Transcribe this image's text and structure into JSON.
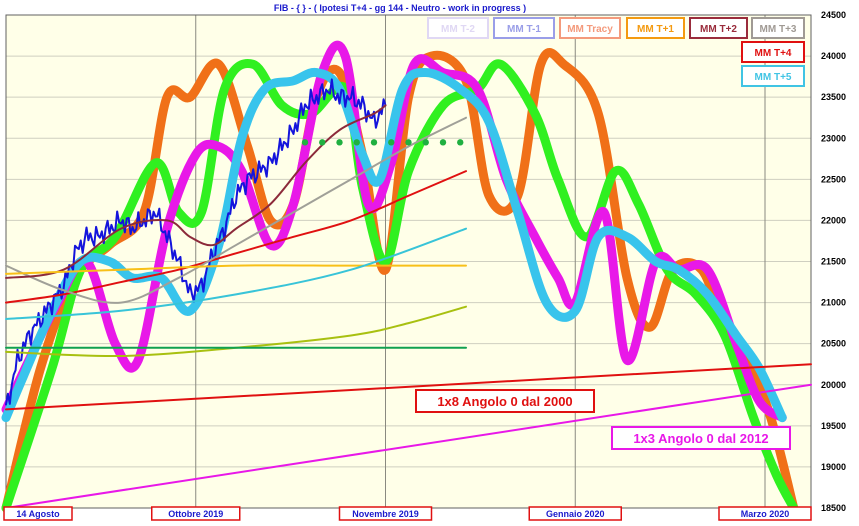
{
  "chart_data": {
    "type": "line",
    "title": "FIB  -  { } - ( Ipotesi T+4  - gg 144  - Neutro - work in progress )",
    "xlabel": "",
    "ylabel": "",
    "x_range": [
      0,
      140
    ],
    "ylim": [
      18500,
      24500
    ],
    "yticks": [
      18500,
      19000,
      19500,
      20000,
      20500,
      21000,
      21500,
      22000,
      22500,
      23000,
      23500,
      24000,
      24500
    ],
    "grid": true,
    "background": "#ffffe8",
    "xtick_labels": [
      {
        "label": "14  Agosto",
        "x": 0
      },
      {
        "label": "Ottobre 2019",
        "x": 33
      },
      {
        "label": "Novembre 2019",
        "x": 66
      },
      {
        "label": "Gennaio  2020",
        "x": 99
      },
      {
        "label": "Marzo  2020",
        "x": 132
      }
    ],
    "vertical_gridlines_x": [
      33,
      66,
      99,
      132
    ],
    "legend": [
      {
        "label": "MM  T-2",
        "color": "#e0d8f4"
      },
      {
        "label": "MM  T-1",
        "color": "#9a9ee8"
      },
      {
        "label": "MM Tracy",
        "color": "#f49a7c"
      },
      {
        "label": "MM  T+1",
        "color": "#f49a10"
      },
      {
        "label": "MM  T+2",
        "color": "#9a2c3c"
      },
      {
        "label": "MM  T+3",
        "color": "#a09a94"
      },
      {
        "label": "MM  T+4",
        "color": "#e01010"
      },
      {
        "label": "MM  T+5",
        "color": "#40c4e4"
      }
    ],
    "annotations": [
      {
        "label": "1x8 Angolo 0 dal 2000",
        "color": "#e01010"
      },
      {
        "label": "1x3 Angolo 0 dal 2012",
        "color": "#e818e8"
      }
    ],
    "series": [
      {
        "color": "#f07018",
        "width": 9,
        "points": [
          [
            0,
            18500
          ],
          [
            6,
            20200
          ],
          [
            12,
            21300
          ],
          [
            18,
            21700
          ],
          [
            24,
            22100
          ],
          [
            28,
            23500
          ],
          [
            32,
            23500
          ],
          [
            37,
            23900
          ],
          [
            42,
            22900
          ],
          [
            46,
            22000
          ],
          [
            50,
            22200
          ],
          [
            54,
            23500
          ],
          [
            58,
            23800
          ],
          [
            62,
            22800
          ],
          [
            66,
            21400
          ],
          [
            70,
            23500
          ],
          [
            74,
            24000
          ],
          [
            80,
            23700
          ],
          [
            84,
            22300
          ],
          [
            89,
            22300
          ],
          [
            93,
            23900
          ],
          [
            97,
            23900
          ],
          [
            103,
            23300
          ],
          [
            108,
            21300
          ],
          [
            112,
            20700
          ],
          [
            116,
            21400
          ],
          [
            121,
            21400
          ],
          [
            125,
            20700
          ],
          [
            129,
            20300
          ],
          [
            133,
            19600
          ],
          [
            137,
            18500
          ]
        ]
      },
      {
        "color": "#30f020",
        "width": 9,
        "points": [
          [
            0,
            18500
          ],
          [
            8,
            20200
          ],
          [
            13,
            21400
          ],
          [
            19,
            21800
          ],
          [
            26,
            22700
          ],
          [
            30,
            22100
          ],
          [
            34,
            22100
          ],
          [
            38,
            23600
          ],
          [
            43,
            23900
          ],
          [
            48,
            23400
          ],
          [
            53,
            23300
          ],
          [
            59,
            23600
          ],
          [
            62,
            22400
          ],
          [
            66,
            21500
          ],
          [
            70,
            22600
          ],
          [
            76,
            23400
          ],
          [
            82,
            23600
          ],
          [
            86,
            23900
          ],
          [
            92,
            23300
          ],
          [
            96,
            22500
          ],
          [
            101,
            21800
          ],
          [
            106,
            22600
          ],
          [
            110,
            22200
          ],
          [
            115,
            21400
          ],
          [
            120,
            21100
          ],
          [
            125,
            20600
          ],
          [
            130,
            19600
          ],
          [
            134,
            18900
          ],
          [
            137,
            18500
          ]
        ]
      },
      {
        "color": "#e818e8",
        "width": 9,
        "points": [
          [
            0,
            19700
          ],
          [
            4,
            20300
          ],
          [
            9,
            21000
          ],
          [
            14,
            21500
          ],
          [
            19,
            20500
          ],
          [
            23,
            20300
          ],
          [
            28,
            21900
          ],
          [
            33,
            22800
          ],
          [
            37,
            22900
          ],
          [
            41,
            22600
          ],
          [
            46,
            21700
          ],
          [
            50,
            22200
          ],
          [
            55,
            23800
          ],
          [
            59,
            24000
          ],
          [
            63,
            22200
          ],
          [
            67,
            22700
          ],
          [
            71,
            23900
          ],
          [
            76,
            23800
          ],
          [
            82,
            23600
          ],
          [
            87,
            22500
          ],
          [
            92,
            21800
          ],
          [
            96,
            21300
          ],
          [
            99,
            21000
          ],
          [
            104,
            22100
          ],
          [
            108,
            20300
          ],
          [
            113,
            21500
          ],
          [
            117,
            21400
          ],
          [
            122,
            21400
          ],
          [
            127,
            20500
          ],
          [
            131,
            19800
          ],
          [
            135,
            19600
          ]
        ]
      },
      {
        "color": "#38c4ec",
        "width": 9,
        "points": [
          [
            0,
            19600
          ],
          [
            3,
            20100
          ],
          [
            8,
            20900
          ],
          [
            13,
            21500
          ],
          [
            18,
            21500
          ],
          [
            22,
            21300
          ],
          [
            27,
            21300
          ],
          [
            32,
            20900
          ],
          [
            37,
            21700
          ],
          [
            41,
            23000
          ],
          [
            45,
            23600
          ],
          [
            50,
            23700
          ],
          [
            54,
            23800
          ],
          [
            58,
            23600
          ],
          [
            62,
            22800
          ],
          [
            65,
            22500
          ],
          [
            69,
            23600
          ],
          [
            73,
            23800
          ],
          [
            79,
            23600
          ],
          [
            84,
            23200
          ],
          [
            89,
            22100
          ],
          [
            94,
            21000
          ],
          [
            99,
            20900
          ],
          [
            103,
            21800
          ],
          [
            108,
            21800
          ],
          [
            113,
            21500
          ],
          [
            117,
            21400
          ],
          [
            122,
            21100
          ],
          [
            127,
            20600
          ],
          [
            131,
            20200
          ],
          [
            135,
            19600
          ]
        ]
      },
      {
        "color": "#1414dc",
        "width": 2,
        "points": [
          [
            0,
            19700
          ],
          [
            2,
            20300
          ],
          [
            4,
            20600
          ],
          [
            6,
            20800
          ],
          [
            8,
            21000
          ],
          [
            10,
            21200
          ],
          [
            12,
            21600
          ],
          [
            14,
            21800
          ],
          [
            16,
            21800
          ],
          [
            18,
            21900
          ],
          [
            20,
            22000
          ],
          [
            22,
            21900
          ],
          [
            24,
            22000
          ],
          [
            26,
            22100
          ],
          [
            28,
            21800
          ],
          [
            30,
            21500
          ],
          [
            32,
            21100
          ],
          [
            34,
            21200
          ],
          [
            36,
            21600
          ],
          [
            38,
            21900
          ],
          [
            40,
            22300
          ],
          [
            42,
            22500
          ],
          [
            44,
            22600
          ],
          [
            46,
            22700
          ],
          [
            48,
            22900
          ],
          [
            50,
            23100
          ],
          [
            52,
            23400
          ],
          [
            54,
            23500
          ],
          [
            56,
            23600
          ],
          [
            58,
            23500
          ],
          [
            60,
            23500
          ],
          [
            62,
            23400
          ],
          [
            64,
            23200
          ],
          [
            66,
            23400
          ]
        ]
      },
      {
        "color": "#e01010",
        "width": 2,
        "points": [
          [
            0,
            21000
          ],
          [
            10,
            21100
          ],
          [
            20,
            21250
          ],
          [
            30,
            21400
          ],
          [
            40,
            21600
          ],
          [
            50,
            21800
          ],
          [
            60,
            22000
          ],
          [
            70,
            22300
          ],
          [
            80,
            22600
          ]
        ]
      },
      {
        "color": "#a0a098",
        "width": 2,
        "points": [
          [
            0,
            21450
          ],
          [
            10,
            21150
          ],
          [
            20,
            21000
          ],
          [
            30,
            21300
          ],
          [
            40,
            21700
          ],
          [
            50,
            22100
          ],
          [
            60,
            22500
          ],
          [
            70,
            22900
          ],
          [
            80,
            23250
          ]
        ]
      },
      {
        "color": "#8c2a3a",
        "width": 2,
        "points": [
          [
            0,
            21300
          ],
          [
            10,
            21400
          ],
          [
            20,
            21900
          ],
          [
            28,
            22000
          ],
          [
            32,
            21800
          ],
          [
            36,
            21700
          ],
          [
            40,
            21900
          ],
          [
            46,
            22200
          ],
          [
            52,
            22700
          ],
          [
            58,
            23100
          ],
          [
            64,
            23300
          ],
          [
            66,
            23400
          ]
        ]
      },
      {
        "color": "#f8c018",
        "width": 2,
        "points": [
          [
            0,
            21350
          ],
          [
            20,
            21400
          ],
          [
            40,
            21450
          ],
          [
            60,
            21450
          ],
          [
            80,
            21450
          ]
        ]
      },
      {
        "color": "#38c4d8",
        "width": 2,
        "points": [
          [
            0,
            20800
          ],
          [
            20,
            20900
          ],
          [
            40,
            21100
          ],
          [
            60,
            21400
          ],
          [
            80,
            21900
          ]
        ]
      },
      {
        "color": "#a8c010",
        "width": 2,
        "points": [
          [
            0,
            20400
          ],
          [
            20,
            20350
          ],
          [
            40,
            20450
          ],
          [
            60,
            20600
          ],
          [
            70,
            20750
          ],
          [
            80,
            20950
          ]
        ]
      },
      {
        "color": "#10a050",
        "width": 2,
        "points": [
          [
            0,
            20450
          ],
          [
            20,
            20450
          ],
          [
            40,
            20450
          ],
          [
            60,
            20450
          ],
          [
            80,
            20450
          ]
        ]
      },
      {
        "color": "#e01010",
        "width": 2,
        "points": [
          [
            0,
            19700
          ],
          [
            140,
            20250
          ]
        ]
      },
      {
        "color": "#e818e8",
        "width": 2,
        "points": [
          [
            0,
            18500
          ],
          [
            140,
            20000
          ]
        ]
      }
    ],
    "dotted_line": {
      "color": "#20b040",
      "y": 22950,
      "points_x": [
        52,
        55,
        58,
        61,
        64,
        67,
        70,
        73,
        76,
        79
      ]
    }
  }
}
